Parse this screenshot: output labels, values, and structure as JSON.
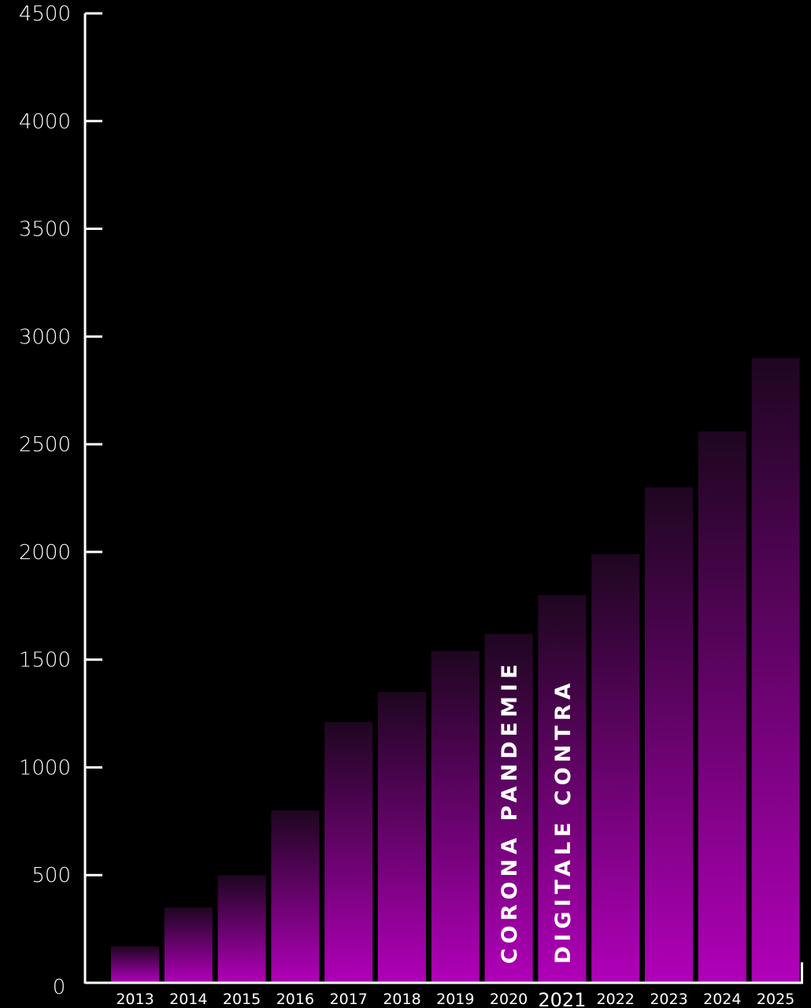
{
  "chart_data": {
    "type": "bar",
    "categories": [
      "2013",
      "2014",
      "2015",
      "2016",
      "2017",
      "2018",
      "2019",
      "2020",
      "2021",
      "2022",
      "2023",
      "2024",
      "2025"
    ],
    "values": [
      170,
      350,
      500,
      800,
      1210,
      1350,
      1540,
      1620,
      1800,
      1990,
      2300,
      2560,
      2900
    ],
    "ylim": [
      0,
      4500
    ],
    "yticks": [
      0,
      500,
      1000,
      1500,
      2000,
      2500,
      3000,
      3500,
      4000,
      4500
    ],
    "ytick_labels": [
      "0",
      "500",
      "1000",
      "1500",
      "2000",
      "2500",
      "3000",
      "3500",
      "4000",
      "4500"
    ],
    "annotations": [
      {
        "category": "2020",
        "text": "CORONA PANDEMIE"
      },
      {
        "category": "2021",
        "text": "DIGITALE CONTRA"
      }
    ],
    "highlight_category": "2021",
    "colors": {
      "bar_bottom": "#b000b8",
      "bar_top": "#1e0620",
      "axis": "#ffffff",
      "text": "#ffffff",
      "background": "#000000"
    },
    "grid": false,
    "legend": "none"
  }
}
